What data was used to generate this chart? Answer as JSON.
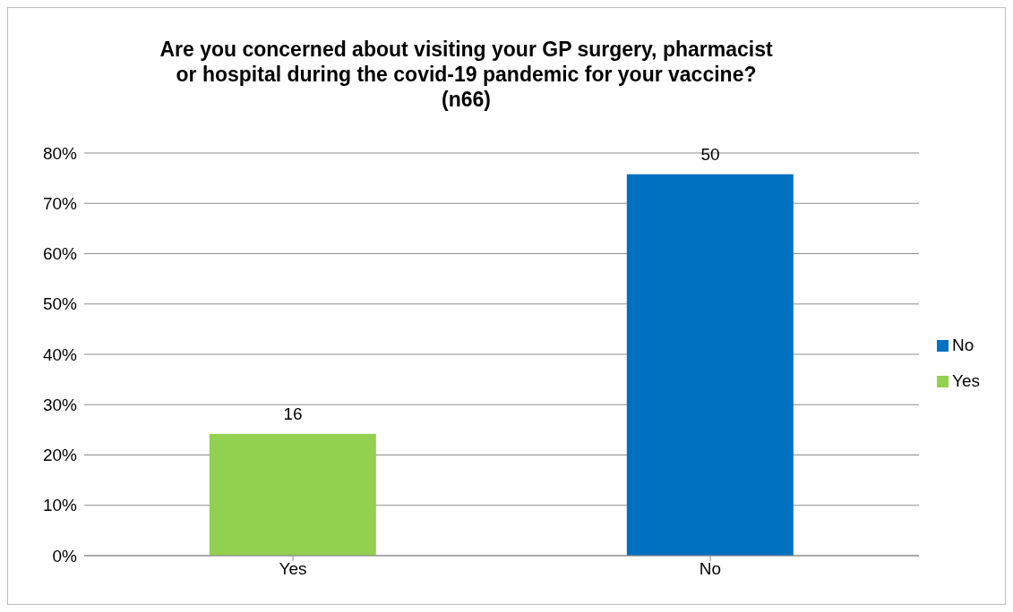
{
  "chart_data": {
    "type": "bar",
    "title": "Are you concerned about visiting your GP surgery, pharmacist or hospital during the covid-19 pandemic for your vaccine? (n66)",
    "categories": [
      "Yes",
      "No"
    ],
    "series": [
      {
        "name": "Yes",
        "color": "#92d050",
        "values": [
          24.2,
          null
        ]
      },
      {
        "name": "No",
        "color": "#0070c0",
        "values": [
          null,
          75.8
        ]
      }
    ],
    "stacked": true,
    "annotations": [
      {
        "text": "16",
        "x": "Yes",
        "y": 24.2
      },
      {
        "text": "50",
        "x": "No",
        "y": 75.8
      }
    ],
    "ylim": [
      0,
      80
    ],
    "yticks": [
      {
        "value": 0,
        "label": "0%"
      },
      {
        "value": 10,
        "label": "10%"
      },
      {
        "value": 20,
        "label": "20%"
      },
      {
        "value": 30,
        "label": "30%"
      },
      {
        "value": 40,
        "label": "40%"
      },
      {
        "value": 50,
        "label": "50%"
      },
      {
        "value": 60,
        "label": "60%"
      },
      {
        "value": 70,
        "label": "70%"
      },
      {
        "value": 80,
        "label": "80%"
      }
    ],
    "grid": "y",
    "legend": "right"
  }
}
